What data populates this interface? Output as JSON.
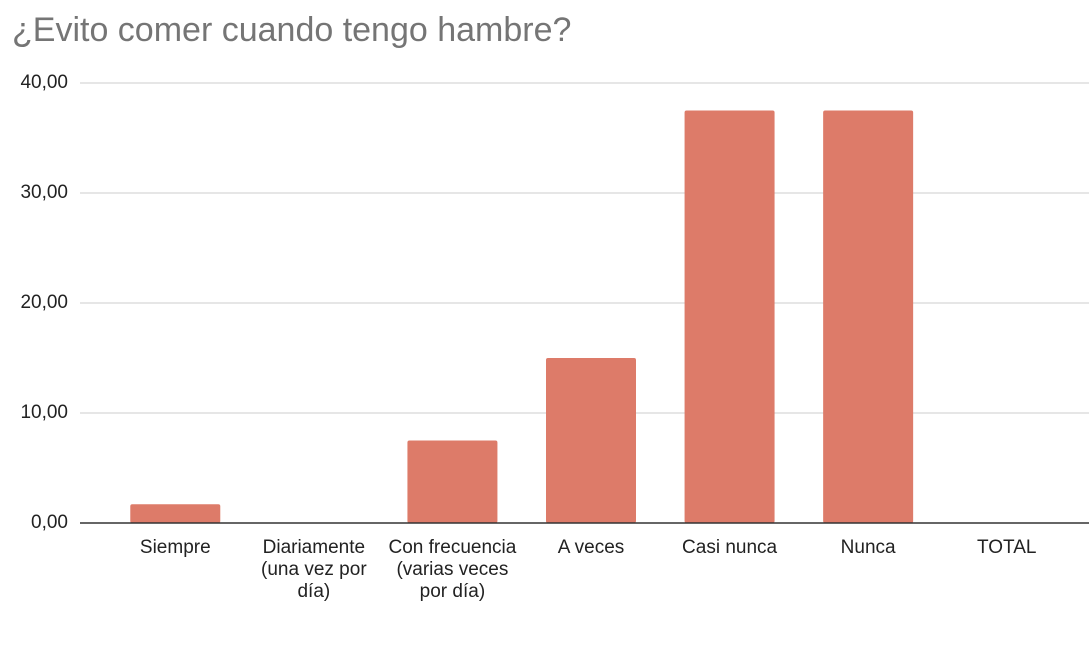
{
  "chart_data": {
    "type": "bar",
    "title": "¿Evito comer cuando tengo hambre?",
    "categories": [
      "Siempre",
      "Diariamente (una vez por día)",
      "Con frecuencia (varias veces por día)",
      "A veces",
      "Casi nunca",
      "Nunca",
      "TOTAL"
    ],
    "values": [
      1.7,
      0,
      7.5,
      15,
      37.5,
      37.5,
      0
    ],
    "color": "#dd7b69",
    "ylim": [
      0,
      40
    ],
    "yticks": [
      {
        "value": 0,
        "label": "0,00"
      },
      {
        "value": 10,
        "label": "10,00"
      },
      {
        "value": 20,
        "label": "20,00"
      },
      {
        "value": 30,
        "label": "30,00"
      },
      {
        "value": 40,
        "label": "40,00"
      }
    ],
    "grid": true
  }
}
